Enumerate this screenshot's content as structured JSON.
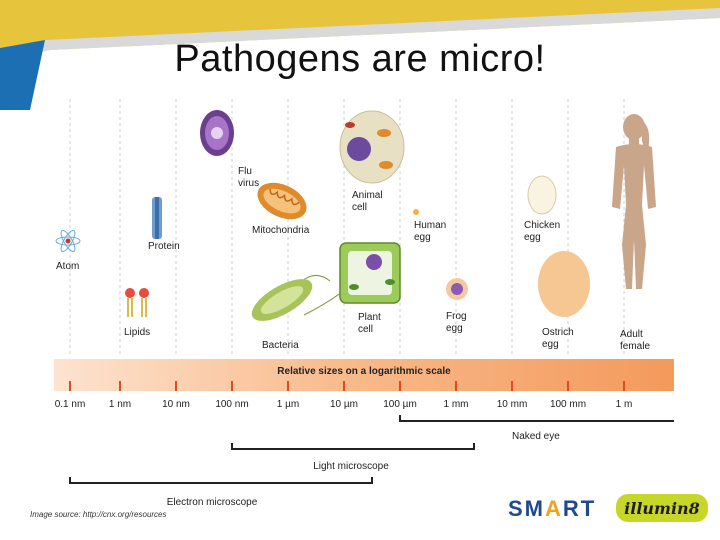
{
  "title": "Pathogens are micro!",
  "figure": {
    "scale_title": "Relative sizes on a logarithmic scale",
    "ticks": [
      "0.1 nm",
      "1 nm",
      "10 nm",
      "100 nm",
      "1 µm",
      "10 µm",
      "100 µm",
      "1 mm",
      "10 mm",
      "100 mm",
      "1 m"
    ],
    "labels": {
      "atom": "Atom",
      "protein": "Protein",
      "lipids": "Lipids",
      "flu_virus_1": "Flu",
      "flu_virus_2": "virus",
      "mitochondria": "Mitochondria",
      "bacteria": "Bacteria",
      "animal_cell_1": "Animal",
      "animal_cell_2": "cell",
      "plant_cell_1": "Plant",
      "plant_cell_2": "cell",
      "human_egg_1": "Human",
      "human_egg_2": "egg",
      "frog_egg_1": "Frog",
      "frog_egg_2": "egg",
      "chicken_egg_1": "Chicken",
      "chicken_egg_2": "egg",
      "ostrich_egg_1": "Ostrich",
      "ostrich_egg_2": "egg",
      "adult_female_1": "Adult",
      "adult_female_2": "female"
    },
    "ranges": {
      "naked_eye": "Naked eye",
      "light_microscope": "Light microscope",
      "electron_microscope": "Electron microscope"
    }
  },
  "source": "Image source: http://cnx.org/resources",
  "logos": {
    "smart_1": "SM",
    "smart_2": "A",
    "smart_3": "RT",
    "illumin8": "illumin8"
  },
  "colors": {
    "accent_yellow": "#e5c63a",
    "accent_blue": "#1f4b8c",
    "scale_orange": "#f6a56b"
  }
}
